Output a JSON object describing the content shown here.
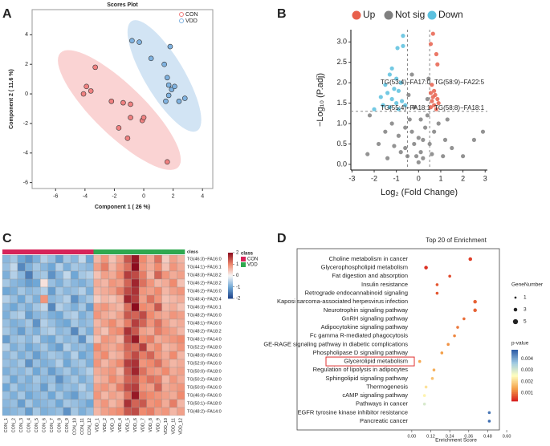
{
  "chart_data": [
    {
      "type": "scatter",
      "label": "A",
      "title": "Scores Plot",
      "x_label": "Component 1 ( 26 %)",
      "y_label": "Component 2 ( 11.6 %)",
      "frame": "box",
      "ellipse": true,
      "legend": "top-right",
      "xlim": [
        -7.6,
        4.7
      ],
      "xticks": [
        -6,
        -4,
        -2,
        0,
        2,
        4
      ],
      "ylim": [
        -6.4,
        5.7
      ],
      "yticks": [
        -6,
        -4,
        -2,
        0,
        2,
        4
      ],
      "series": [
        {
          "name": "CON",
          "color": "#f08080",
          "x": [
            -3.3,
            -3.9,
            -3.6,
            -4.1,
            -2.2,
            -1.4,
            -0.9,
            -0.9,
            -0.1,
            0,
            -1.7,
            -1.1,
            1.6
          ],
          "values": [
            1.8,
            0.5,
            0.2,
            0,
            -0.5,
            -0.6,
            -0.7,
            -1.6,
            -1.8,
            -1.6,
            -2.3,
            -3,
            -4.6
          ]
        },
        {
          "name": "VDD",
          "color": "#7fb2e0",
          "x": [
            -0.8,
            -0.3,
            1.8,
            1.4,
            1.6,
            1.7,
            1.9,
            2.1,
            1.7,
            2.4,
            2.8,
            1.5,
            0.5
          ],
          "values": [
            3.6,
            3.5,
            3.2,
            2.0,
            1.1,
            0.6,
            0.3,
            0.5,
            -0.1,
            -0.5,
            -0.3,
            -0.5,
            2.4
          ]
        }
      ]
    },
    {
      "type": "scatter",
      "label": "B",
      "x_label": "Log₂ (Fold Change)",
      "y_label": "−Log₁₀ (P.adj)",
      "frame": "axes",
      "legend": "top",
      "xlim": [
        -3.05,
        3.1
      ],
      "xticks": [
        -3,
        -2,
        -1,
        0,
        1,
        2,
        3
      ],
      "ylim": [
        -0.14,
        3.3
      ],
      "yticks": [
        {
          "value": 0,
          "label": "0.0"
        },
        0.5,
        {
          "value": 1,
          "label": "1.0"
        },
        1.5,
        {
          "value": 2,
          "label": "2.0"
        },
        2.5,
        {
          "value": 3,
          "label": "3.0"
        }
      ],
      "vlines": [
        -0.5,
        0.5
      ],
      "hlines": [
        1.3
      ],
      "annotations": [
        "TG(53:4)−FA17:0",
        "TG(58:9)−FA22:5",
        "TG(55:4)−FA18:1",
        "TG(58:8)−FA18:1"
      ],
      "series": [
        {
          "name": "Up",
          "color": "#e8604c",
          "x": [
            0.65,
            0.55,
            0.8,
            0.85,
            0.6,
            0.7,
            0.55,
            0.75,
            0.65,
            0.85,
            0.6,
            0.9,
            0.7,
            0.55,
            0.8
          ],
          "values": [
            3.2,
            2.95,
            2.7,
            2.45,
            1.95,
            1.8,
            1.75,
            1.7,
            1.65,
            1.6,
            1.55,
            1.5,
            1.45,
            1.4,
            1.35
          ]
        },
        {
          "name": "Not sig",
          "color": "#808080",
          "x": [
            -2.3,
            -1.8,
            -1.5,
            -1.2,
            -0.9,
            -0.6,
            -0.4,
            -0.3,
            -0.2,
            -0.1,
            0,
            0.1,
            0.2,
            0.3,
            0.4,
            0.2,
            -0.5,
            -0.8,
            -1.1,
            0.5,
            0.7,
            0.9,
            1.2,
            1.5,
            2.0,
            2.5,
            2.9,
            -2.2,
            -0.45,
            -0.3,
            0.4,
            0.45,
            -0.2,
            0.1,
            1.1,
            -1.4,
            0,
            -0.6,
            0.6,
            1.3
          ],
          "values": [
            0.25,
            0.5,
            0.8,
            1.0,
            0.7,
            0.4,
            1.1,
            0.8,
            0.5,
            0.2,
            0.05,
            0.3,
            0.6,
            0.9,
            1.2,
            0.15,
            0.2,
            0.3,
            0.45,
            0.5,
            0.8,
            1.0,
            0.6,
            0.4,
            0.2,
            0.6,
            0.8,
            1.2,
            1.7,
            2.2,
            1.6,
            2.1,
            1.4,
            1.1,
            0.2,
            0.15,
            0.65,
            0.9,
            0.25,
            1.1
          ]
        },
        {
          "name": "Down",
          "color": "#5bc0de",
          "x": [
            -0.7,
            -0.95,
            -0.7,
            -1.2,
            -1.3,
            -1.0,
            -0.8,
            -1.5,
            -1.1,
            -0.9,
            -1.4,
            -1.7,
            -1.2,
            -0.75,
            -1.0,
            -1.6,
            -0.6,
            -1.3,
            -0.9,
            -2.0
          ],
          "values": [
            3.15,
            2.85,
            2.9,
            2.35,
            2.2,
            2.1,
            2.0,
            1.95,
            1.85,
            1.8,
            1.75,
            1.65,
            1.6,
            1.55,
            1.5,
            1.45,
            1.45,
            1.4,
            1.35,
            1.35
          ]
        }
      ]
    },
    {
      "type": "heatmap",
      "label": "C",
      "class_title": "class",
      "classes": [
        {
          "name": "CON",
          "color": "#d6245a"
        },
        {
          "name": "VDD",
          "color": "#2fa84f"
        }
      ],
      "class_counts": [
        12,
        12
      ],
      "zlim": [
        -2,
        2
      ],
      "zticks": [
        2,
        1,
        0,
        -1,
        -2
      ],
      "x": [
        "CON_1",
        "CON_2",
        "CON_3",
        "CON_4",
        "CON_5",
        "CON_6",
        "CON_7",
        "CON_8",
        "CON_9",
        "CON_10",
        "CON_11",
        "CON_12",
        "VDD_1",
        "VDD_2",
        "VDD_3",
        "VDD_4",
        "VDD_5",
        "VDD_6",
        "VDD_7",
        "VDD_8",
        "VDD_9",
        "VDD_10",
        "VDD_11",
        "VDD_12"
      ],
      "y": [
        "TG(46:3)−FA16:0",
        "TG(44:1)−FA16:1",
        "TG(48:3)−FA18:2",
        "TG(46:2)−FA18:2",
        "TG(46:2)−FA16:0",
        "TG(48:4)−FA20:4",
        "TG(46:3)−FA16:1",
        "TG(48:2)−FA16:0",
        "TG(48:1)−FA16:0",
        "TG(48:2)−FA18:2",
        "TG(48:1)−FA14:0",
        "TG(52:2)−FA18:0",
        "TG(48:0)−FA16:0",
        "TG(52:0)−FA16:0",
        "TG(50:0)−FA18:0",
        "TG(50:2)−FA18:0",
        "TG(50:0)−FA16:0",
        "TG(46:0)−FA16:0",
        "TG(50:1)−FA18:0",
        "TG(48:2)−FA14:0"
      ],
      "values": [
        [
          -0.8,
          -0.6,
          -1.0,
          -1.2,
          -0.9,
          -0.5,
          -0.7,
          -1.1,
          -0.6,
          -0.8,
          -0.4,
          -1.0,
          0.6,
          0.9,
          0.5,
          0.8,
          1.4,
          1.9,
          1.0,
          0.7,
          1.2,
          0.4,
          0.8,
          0.6
        ],
        [
          -0.7,
          -0.4,
          -1.3,
          -0.9,
          -0.6,
          -0.8,
          -1.0,
          -0.5,
          -0.9,
          -0.6,
          -0.7,
          -0.8,
          0.8,
          1.1,
          0.6,
          0.9,
          1.2,
          2.0,
          0.9,
          0.7,
          1.0,
          0.5,
          0.9,
          0.7
        ],
        [
          -0.9,
          -0.5,
          -0.8,
          -1.4,
          -0.7,
          -0.6,
          -1.2,
          -0.8,
          -0.4,
          -1.0,
          -0.6,
          -0.5,
          0.5,
          0.8,
          0.7,
          1.0,
          1.6,
          1.5,
          1.1,
          0.6,
          1.3,
          0.9,
          0.7,
          0.8
        ],
        [
          -0.6,
          -0.8,
          -0.9,
          -1.1,
          -1.0,
          0.2,
          -0.7,
          -0.9,
          -0.6,
          -0.8,
          -0.9,
          -0.7,
          0.7,
          0.6,
          0.9,
          0.8,
          1.3,
          1.8,
          1.2,
          0.9,
          0.6,
          0.7,
          1.0,
          0.5
        ],
        [
          -1.0,
          -0.9,
          -0.6,
          -0.8,
          -0.7,
          -0.5,
          -1.1,
          -0.6,
          -0.8,
          -0.7,
          -0.5,
          -0.9,
          0.6,
          0.7,
          0.8,
          1.1,
          1.5,
          1.7,
          0.9,
          0.8,
          1.0,
          0.6,
          0.8,
          0.9
        ],
        [
          -0.5,
          -0.7,
          -1.0,
          -0.6,
          -0.9,
          0.9,
          -0.8,
          -0.7,
          -0.5,
          -1.2,
          -0.8,
          -0.6,
          0.4,
          0.6,
          0.5,
          0.7,
          1.8,
          1.6,
          0.8,
          1.2,
          0.9,
          0.5,
          0.6,
          0.7
        ],
        [
          -0.8,
          -1.0,
          -0.7,
          -0.9,
          -0.6,
          -0.4,
          -1.3,
          -0.5,
          -0.7,
          -0.9,
          -0.6,
          -1.1,
          0.8,
          0.9,
          0.7,
          0.6,
          1.2,
          2.1,
          1.0,
          0.9,
          1.4,
          0.6,
          0.7,
          0.5
        ],
        [
          -0.9,
          -0.6,
          -0.5,
          -1.1,
          -0.8,
          -0.7,
          -0.9,
          -1.0,
          -0.6,
          -0.5,
          -0.9,
          -0.7,
          0.9,
          0.7,
          0.6,
          0.8,
          1.4,
          1.3,
          1.5,
          1.0,
          0.8,
          0.7,
          0.9,
          0.8
        ],
        [
          -0.7,
          -0.9,
          -0.8,
          -0.6,
          -1.2,
          -0.5,
          -0.7,
          -0.9,
          -1.0,
          -0.6,
          -0.8,
          -0.7,
          0.6,
          0.8,
          1.0,
          0.7,
          1.1,
          1.6,
          1.3,
          0.9,
          1.2,
          0.8,
          0.6,
          0.7
        ],
        [
          -0.6,
          -0.8,
          -1.1,
          -0.7,
          -0.9,
          -0.6,
          -0.5,
          -0.8,
          -0.7,
          -1.3,
          -0.6,
          -0.9,
          0.7,
          0.5,
          0.9,
          1.0,
          1.7,
          1.4,
          0.8,
          0.7,
          1.1,
          0.9,
          0.8,
          0.6
        ],
        [
          -1.1,
          -0.7,
          -0.6,
          -0.8,
          -0.5,
          -0.9,
          -1.0,
          -0.6,
          -0.8,
          -0.7,
          -1.2,
          -0.5,
          0.5,
          0.9,
          0.8,
          0.6,
          1.5,
          1.9,
          1.0,
          1.1,
          0.7,
          0.8,
          0.9,
          1.0
        ],
        [
          -0.5,
          -0.9,
          -0.7,
          -1.0,
          -0.8,
          -0.6,
          -0.9,
          -1.1,
          -0.5,
          -0.8,
          -0.7,
          -0.9,
          1.0,
          0.8,
          0.7,
          0.9,
          1.3,
          1.2,
          1.6,
          0.8,
          1.0,
          0.6,
          0.7,
          0.9
        ],
        [
          -0.8,
          -0.6,
          -0.9,
          -0.7,
          -1.1,
          -0.8,
          -0.6,
          -0.7,
          -0.9,
          -0.5,
          -1.0,
          -0.8,
          0.8,
          1.0,
          0.6,
          0.7,
          1.2,
          1.5,
          1.1,
          1.3,
          0.9,
          0.7,
          1.0,
          0.6
        ],
        [
          -0.7,
          -0.8,
          -0.6,
          -1.2,
          -0.7,
          -0.9,
          -0.8,
          -0.5,
          -1.0,
          -0.7,
          -0.6,
          -0.9,
          0.9,
          0.6,
          0.8,
          1.0,
          1.6,
          1.7,
          0.9,
          1.0,
          1.2,
          0.8,
          0.6,
          0.7
        ],
        [
          -0.9,
          -0.7,
          -0.8,
          -0.6,
          -1.0,
          -0.7,
          -1.1,
          -0.8,
          -0.6,
          -0.9,
          -0.7,
          -0.5,
          0.7,
          0.8,
          0.9,
          0.6,
          1.4,
          1.8,
          1.2,
          0.9,
          0.8,
          1.0,
          0.7,
          0.8
        ],
        [
          -0.6,
          -1.0,
          -0.7,
          -0.9,
          -0.6,
          -0.8,
          -0.7,
          -1.2,
          -0.8,
          -0.6,
          -0.9,
          -0.7,
          0.6,
          0.7,
          1.0,
          0.8,
          1.3,
          1.4,
          1.0,
          1.2,
          1.1,
          0.6,
          0.9,
          0.7
        ],
        [
          -1.0,
          -0.6,
          -0.9,
          -0.8,
          -0.7,
          -1.1,
          -0.6,
          -0.9,
          -0.7,
          -0.8,
          -0.5,
          -0.8,
          0.8,
          0.9,
          0.7,
          1.1,
          1.5,
          1.6,
          0.9,
          0.8,
          1.3,
          0.7,
          0.8,
          0.9
        ],
        [
          -0.7,
          -0.9,
          -0.6,
          -1.0,
          -0.8,
          -0.7,
          -1.0,
          -0.6,
          -0.9,
          -1.1,
          -0.7,
          -0.6,
          0.9,
          0.6,
          0.8,
          0.7,
          1.2,
          1.9,
          1.1,
          1.0,
          0.9,
          0.8,
          0.7,
          1.0
        ],
        [
          -0.8,
          -0.7,
          -1.1,
          -0.6,
          -0.9,
          -0.8,
          -0.7,
          -1.0,
          -0.6,
          -0.7,
          -0.8,
          -1.0,
          0.7,
          0.9,
          0.6,
          0.8,
          1.7,
          1.3,
          1.4,
          0.9,
          1.0,
          0.7,
          1.1,
          0.6
        ],
        [
          -0.9,
          -0.8,
          -0.7,
          -1.1,
          -0.6,
          -0.9,
          -0.8,
          -0.7,
          -1.2,
          -0.6,
          -0.9,
          -0.7,
          0.6,
          0.8,
          0.9,
          1.0,
          1.4,
          1.5,
          1.0,
          1.1,
          0.8,
          0.9,
          0.6,
          0.8
        ]
      ]
    },
    {
      "type": "dot",
      "label": "D",
      "title": "Top 20 of Enrichment",
      "x_label": "Enrichment Score",
      "size_title": "GeneNumber",
      "size_ticks": [
        1,
        3,
        5
      ],
      "color_title": "p-value",
      "plim": [
        0.0003,
        0.0048
      ],
      "pticks": [
        0.004,
        0.003,
        0.002,
        0.001
      ],
      "highlight_index": 12,
      "xlim": [
        -0.04,
        0.62
      ],
      "xticks": [
        {
          "value": 0,
          "label": "0.00"
        },
        0.12,
        0.24,
        0.36,
        0.48,
        {
          "value": 0.6,
          "label": "0.60"
        }
      ],
      "categories": [
        "Choline metabolism in cancer",
        "Glycerophospholipid metabolism",
        "Fat digestion and absorption",
        "Insulin resistance",
        "Retrograde endocannabinoid signaling",
        "Kaposi sarcoma-associated herpesvirus infection",
        "Neurotrophin signaling pathway",
        "GnRH signaling pathway",
        "Adipocytokine signaling pathway",
        "Fc gamma R-mediated phagocytosis",
        "GE-RAGE signaling pathway in diabetic complications",
        "Phospholipase D signaling pathway",
        "Glycerolipid metabolism",
        "Regulation of lipolysis in adipocytes",
        "Sphingolipid signaling pathway",
        "Thermogenesis",
        "cAMP signaling pathway",
        "Pathways in cancer",
        "EGFR tyrosine kinase inhibitor resistance",
        "Pancreatic cancer"
      ],
      "values": [
        0.37,
        0.09,
        0.24,
        0.16,
        0.16,
        0.4,
        0.4,
        0.33,
        0.29,
        0.27,
        0.23,
        0.19,
        0.05,
        0.14,
        0.13,
        0.09,
        0.08,
        0.08,
        0.49,
        0.49
      ],
      "sizes": [
        3,
        3,
        2,
        2,
        2,
        3,
        3,
        2,
        2,
        2,
        2,
        2,
        2,
        2,
        2,
        2,
        2,
        2,
        2,
        2
      ],
      "pvalues": [
        0.0006,
        0.0005,
        0.0007,
        0.0008,
        0.0008,
        0.0009,
        0.0009,
        0.001,
        0.0011,
        0.0012,
        0.0013,
        0.0014,
        0.0015,
        0.0016,
        0.0018,
        0.0022,
        0.0024,
        0.003,
        0.0045,
        0.0046
      ]
    }
  ]
}
